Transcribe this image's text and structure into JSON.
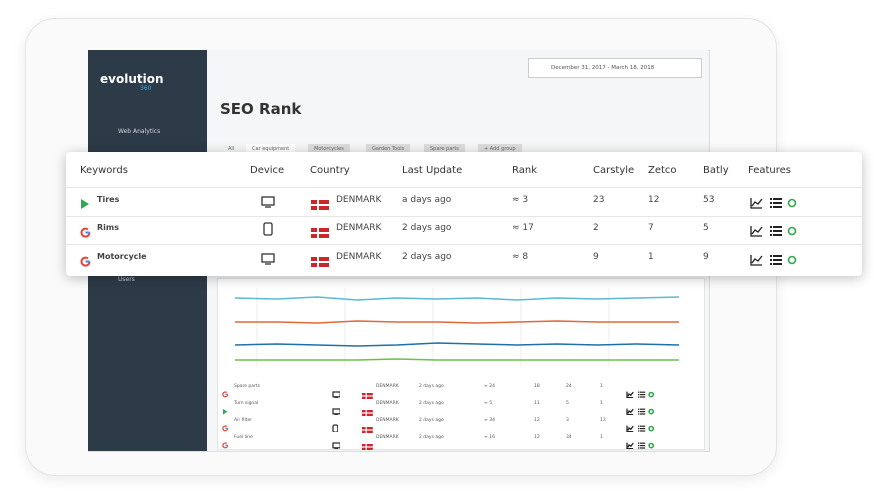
{
  "sidebar": {
    "logo": "evolution",
    "logo_sub": "360",
    "nav": [
      "Web Analytics",
      "Users"
    ]
  },
  "header": {
    "title": "SEO Rank",
    "date_range": "December 31, 2017 - March 18, 2018"
  },
  "tabs": [
    "All",
    "Car equipment",
    "Motorcycles",
    "Garden Tools",
    "Spare parts",
    "+ Add group"
  ],
  "table": {
    "columns": [
      "Keywords",
      "Device",
      "Country",
      "Last Update",
      "Rank",
      "Carstyle",
      "Zetco",
      "Batly",
      "Features"
    ],
    "rows": [
      [
        "Tires",
        "DENMARK",
        "a days ago",
        "≈ 3",
        "23",
        "12",
        "53"
      ],
      [
        "Rims",
        "DENMARK",
        "2 days ago",
        "≈ 17",
        "2",
        "7",
        "5"
      ],
      [
        "Motorcycle",
        "DENMARK",
        "2 days ago",
        "≈ 8",
        "9",
        "1",
        "9"
      ]
    ]
  },
  "background_table": {
    "rows": [
      [
        "Spare parts",
        "DENMARK",
        "2 days ago",
        "≈ 24",
        "18",
        "24",
        "1"
      ],
      [
        "Turn signal",
        "DENMARK",
        "2 days ago",
        "≈ 5",
        "11",
        "5",
        "1"
      ],
      [
        "Air filter",
        "DENMARK",
        "2 days ago",
        "≈ 34",
        "12",
        "3",
        "13"
      ],
      [
        "Fuel line",
        "DENMARK",
        "2 days ago",
        "≈ 16",
        "12",
        "34",
        "1"
      ]
    ]
  }
}
